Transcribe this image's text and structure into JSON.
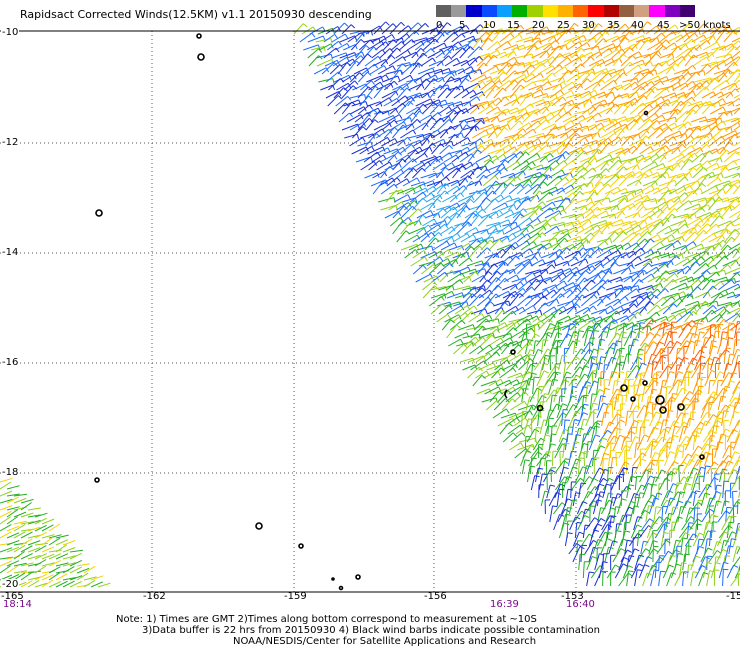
{
  "title": "Rapidsact Corrected Winds(12.5KM) v1.1 20150930 descending",
  "legend": {
    "colors": [
      "#606060",
      "#9a9a9a",
      "#0000cc",
      "#0a4bff",
      "#0aa0ff",
      "#00b000",
      "#a0d000",
      "#ffe000",
      "#ffb000",
      "#ff6400",
      "#ff0000",
      "#b00000",
      "#906040",
      "#d0a080",
      "#ff00ff",
      "#8000c0",
      "#400070"
    ],
    "labels": [
      "0",
      "5",
      "10",
      "15",
      "20",
      "25",
      "30",
      "35",
      "40",
      "45",
      ">50 knots"
    ]
  },
  "map": {
    "lat_labels": [
      "-10",
      "-12",
      "-14",
      "-16",
      "-18",
      "-20"
    ],
    "lon_labels": [
      "-165",
      "-162",
      "-159",
      "-156",
      "-153",
      "-15"
    ],
    "time_labels": [
      "18:14",
      "16:39",
      "16:40"
    ]
  },
  "notes": {
    "line1": "Note: 1) Times are GMT 2)Times along bottom correspond to measurement at ~10S",
    "line2": "3)Data buffer is 22 hrs from 20150930 4) Black wind barbs indicate possible contamination",
    "line3": "NOAA/NESDIS/Center for Satellite Applications and Research"
  }
}
